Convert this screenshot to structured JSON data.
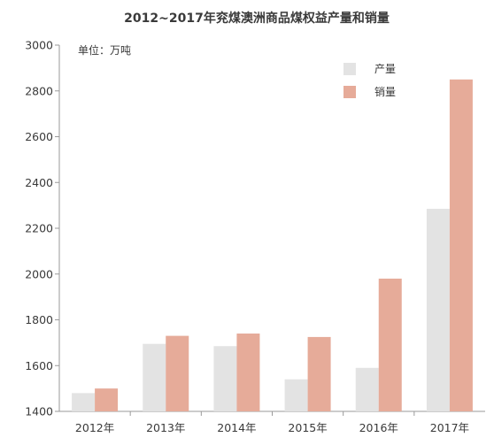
{
  "chart_data": {
    "type": "bar",
    "title": "2012~2017年兖煤澳洲商品煤权益产量和销量",
    "unit_label": "单位：万吨",
    "categories": [
      "2012年",
      "2013年",
      "2014年",
      "2015年",
      "2016年",
      "2017年"
    ],
    "series": [
      {
        "name": "产量",
        "color": "#e3e3e3",
        "values": [
          1480,
          1695,
          1685,
          1540,
          1590,
          2285
        ]
      },
      {
        "name": "销量",
        "color": "#e6ab99",
        "values": [
          1500,
          1730,
          1740,
          1725,
          1980,
          2850
        ]
      }
    ],
    "ylim": [
      1400,
      3000
    ],
    "yticks": [
      1400,
      1600,
      1800,
      2000,
      2200,
      2400,
      2600,
      2800,
      3000
    ],
    "grid": false,
    "legend_position": "top-right"
  }
}
